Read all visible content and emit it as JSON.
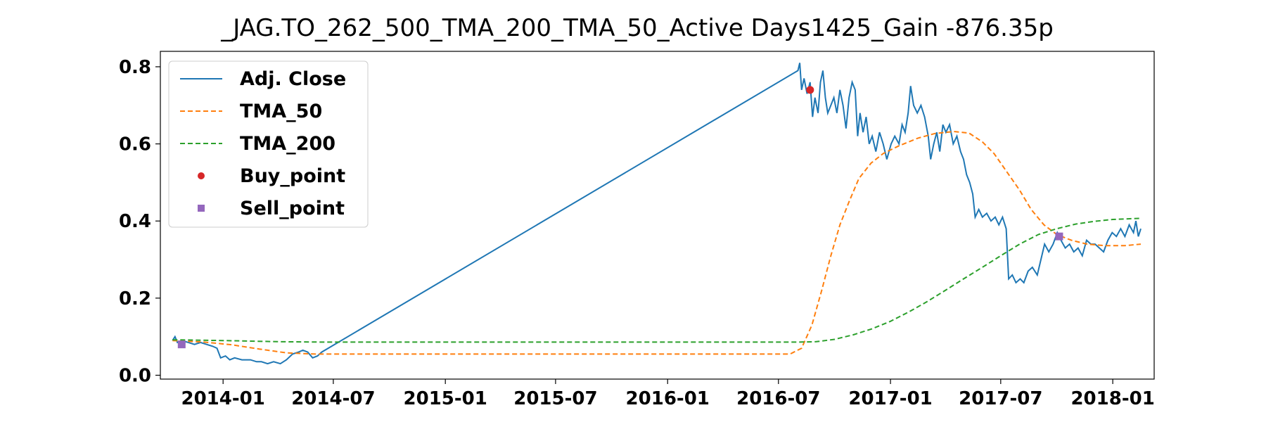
{
  "chart_data": {
    "type": "line",
    "title": "_JAG.TO_262_500_TMA_200_TMA_50_Active Days1425_Gain -876.35p",
    "xlabel": "",
    "ylabel": "",
    "xlim": [
      "2013-09-20",
      "2018-03-10"
    ],
    "ylim": [
      -0.01,
      0.84
    ],
    "x_ticks": [
      "2014-01",
      "2014-07",
      "2015-01",
      "2015-07",
      "2016-01",
      "2016-07",
      "2017-01",
      "2017-07",
      "2018-01"
    ],
    "y_ticks": [
      "0.0",
      "0.2",
      "0.4",
      "0.6",
      "0.8"
    ],
    "y_tick_values": [
      0.0,
      0.2,
      0.4,
      0.6,
      0.8
    ],
    "grid": false,
    "legend_position": "upper-left",
    "series": [
      {
        "name": "Adj. Close",
        "style": "solid",
        "color": "#1f77b4",
        "points": [
          [
            "2013-10-10",
            0.09
          ],
          [
            "2013-10-14",
            0.1
          ],
          [
            "2013-10-18",
            0.085
          ],
          [
            "2013-10-25",
            0.09
          ],
          [
            "2013-11-05",
            0.085
          ],
          [
            "2013-11-15",
            0.08
          ],
          [
            "2013-11-25",
            0.085
          ],
          [
            "2013-12-05",
            0.08
          ],
          [
            "2013-12-15",
            0.075
          ],
          [
            "2013-12-22",
            0.07
          ],
          [
            "2013-12-28",
            0.045
          ],
          [
            "2014-01-05",
            0.05
          ],
          [
            "2014-01-12",
            0.04
          ],
          [
            "2014-01-20",
            0.045
          ],
          [
            "2014-02-01",
            0.04
          ],
          [
            "2014-02-15",
            0.04
          ],
          [
            "2014-02-25",
            0.035
          ],
          [
            "2014-03-05",
            0.035
          ],
          [
            "2014-03-15",
            0.03
          ],
          [
            "2014-03-25",
            0.035
          ],
          [
            "2014-04-05",
            0.03
          ],
          [
            "2014-04-15",
            0.04
          ],
          [
            "2014-04-25",
            0.055
          ],
          [
            "2014-05-05",
            0.06
          ],
          [
            "2014-05-12",
            0.065
          ],
          [
            "2014-05-20",
            0.06
          ],
          [
            "2014-05-28",
            0.045
          ],
          [
            "2014-06-05",
            0.05
          ],
          [
            "2014-06-12",
            0.06
          ],
          [
            "2016-08-02",
            0.79
          ],
          [
            "2016-08-05",
            0.81
          ],
          [
            "2016-08-08",
            0.74
          ],
          [
            "2016-08-12",
            0.77
          ],
          [
            "2016-08-17",
            0.73
          ],
          [
            "2016-08-22",
            0.76
          ],
          [
            "2016-08-26",
            0.67
          ],
          [
            "2016-08-30",
            0.72
          ],
          [
            "2016-09-04",
            0.68
          ],
          [
            "2016-09-08",
            0.76
          ],
          [
            "2016-09-12",
            0.79
          ],
          [
            "2016-09-16",
            0.72
          ],
          [
            "2016-09-20",
            0.68
          ],
          [
            "2016-09-25",
            0.7
          ],
          [
            "2016-09-30",
            0.72
          ],
          [
            "2016-10-05",
            0.68
          ],
          [
            "2016-10-10",
            0.74
          ],
          [
            "2016-10-15",
            0.7
          ],
          [
            "2016-10-20",
            0.64
          ],
          [
            "2016-10-25",
            0.72
          ],
          [
            "2016-10-30",
            0.76
          ],
          [
            "2016-11-04",
            0.74
          ],
          [
            "2016-11-08",
            0.62
          ],
          [
            "2016-11-12",
            0.68
          ],
          [
            "2016-11-17",
            0.63
          ],
          [
            "2016-11-22",
            0.67
          ],
          [
            "2016-11-27",
            0.6
          ],
          [
            "2016-12-02",
            0.62
          ],
          [
            "2016-12-08",
            0.58
          ],
          [
            "2016-12-14",
            0.63
          ],
          [
            "2016-12-20",
            0.6
          ],
          [
            "2016-12-26",
            0.56
          ],
          [
            "2017-01-02",
            0.6
          ],
          [
            "2017-01-08",
            0.62
          ],
          [
            "2017-01-15",
            0.6
          ],
          [
            "2017-01-20",
            0.65
          ],
          [
            "2017-01-25",
            0.63
          ],
          [
            "2017-01-30",
            0.68
          ],
          [
            "2017-02-03",
            0.75
          ],
          [
            "2017-02-08",
            0.7
          ],
          [
            "2017-02-14",
            0.68
          ],
          [
            "2017-02-20",
            0.7
          ],
          [
            "2017-02-26",
            0.67
          ],
          [
            "2017-03-04",
            0.62
          ],
          [
            "2017-03-08",
            0.56
          ],
          [
            "2017-03-13",
            0.6
          ],
          [
            "2017-03-18",
            0.63
          ],
          [
            "2017-03-23",
            0.58
          ],
          [
            "2017-03-28",
            0.65
          ],
          [
            "2017-04-02",
            0.63
          ],
          [
            "2017-04-08",
            0.65
          ],
          [
            "2017-04-14",
            0.6
          ],
          [
            "2017-04-20",
            0.62
          ],
          [
            "2017-04-26",
            0.58
          ],
          [
            "2017-05-01",
            0.56
          ],
          [
            "2017-05-06",
            0.52
          ],
          [
            "2017-05-11",
            0.5
          ],
          [
            "2017-05-16",
            0.47
          ],
          [
            "2017-05-20",
            0.41
          ],
          [
            "2017-05-26",
            0.43
          ],
          [
            "2017-06-01",
            0.41
          ],
          [
            "2017-06-08",
            0.42
          ],
          [
            "2017-06-15",
            0.4
          ],
          [
            "2017-06-22",
            0.41
          ],
          [
            "2017-06-28",
            0.39
          ],
          [
            "2017-07-04",
            0.41
          ],
          [
            "2017-07-10",
            0.38
          ],
          [
            "2017-07-14",
            0.25
          ],
          [
            "2017-07-20",
            0.26
          ],
          [
            "2017-07-26",
            0.24
          ],
          [
            "2017-08-02",
            0.25
          ],
          [
            "2017-08-08",
            0.24
          ],
          [
            "2017-08-15",
            0.27
          ],
          [
            "2017-08-22",
            0.28
          ],
          [
            "2017-08-30",
            0.26
          ],
          [
            "2017-09-05",
            0.3
          ],
          [
            "2017-09-11",
            0.34
          ],
          [
            "2017-09-18",
            0.32
          ],
          [
            "2017-09-25",
            0.34
          ],
          [
            "2017-10-02",
            0.37
          ],
          [
            "2017-10-08",
            0.35
          ],
          [
            "2017-10-15",
            0.33
          ],
          [
            "2017-10-22",
            0.34
          ],
          [
            "2017-10-29",
            0.32
          ],
          [
            "2017-11-05",
            0.33
          ],
          [
            "2017-11-12",
            0.31
          ],
          [
            "2017-11-19",
            0.35
          ],
          [
            "2017-11-26",
            0.34
          ],
          [
            "2017-12-03",
            0.34
          ],
          [
            "2017-12-10",
            0.33
          ],
          [
            "2017-12-17",
            0.32
          ],
          [
            "2017-12-24",
            0.35
          ],
          [
            "2017-12-31",
            0.37
          ],
          [
            "2018-01-07",
            0.36
          ],
          [
            "2018-01-14",
            0.38
          ],
          [
            "2018-01-21",
            0.36
          ],
          [
            "2018-01-28",
            0.39
          ],
          [
            "2018-02-04",
            0.37
          ],
          [
            "2018-02-08",
            0.4
          ],
          [
            "2018-02-12",
            0.36
          ],
          [
            "2018-02-16",
            0.38
          ]
        ]
      },
      {
        "name": "TMA_50",
        "style": "dashed",
        "color": "#ff7f0e",
        "points": [
          [
            "2013-10-10",
            0.09
          ],
          [
            "2013-12-01",
            0.086
          ],
          [
            "2014-01-15",
            0.079
          ],
          [
            "2014-03-01",
            0.068
          ],
          [
            "2014-04-15",
            0.058
          ],
          [
            "2014-06-01",
            0.055
          ],
          [
            "2016-07-20",
            0.055
          ],
          [
            "2016-08-08",
            0.07
          ],
          [
            "2016-08-25",
            0.13
          ],
          [
            "2016-09-10",
            0.22
          ],
          [
            "2016-09-25",
            0.31
          ],
          [
            "2016-10-10",
            0.39
          ],
          [
            "2016-10-25",
            0.45
          ],
          [
            "2016-11-10",
            0.51
          ],
          [
            "2016-11-30",
            0.55
          ],
          [
            "2016-12-20",
            0.575
          ],
          [
            "2017-01-15",
            0.595
          ],
          [
            "2017-02-15",
            0.615
          ],
          [
            "2017-03-15",
            0.627
          ],
          [
            "2017-04-15",
            0.632
          ],
          [
            "2017-05-10",
            0.628
          ],
          [
            "2017-06-01",
            0.605
          ],
          [
            "2017-06-20",
            0.575
          ],
          [
            "2017-07-10",
            0.53
          ],
          [
            "2017-08-01",
            0.48
          ],
          [
            "2017-08-20",
            0.43
          ],
          [
            "2017-09-10",
            0.39
          ],
          [
            "2017-10-01",
            0.365
          ],
          [
            "2017-10-25",
            0.35
          ],
          [
            "2017-11-20",
            0.34
          ],
          [
            "2017-12-20",
            0.336
          ],
          [
            "2018-01-20",
            0.336
          ],
          [
            "2018-02-16",
            0.34
          ]
        ]
      },
      {
        "name": "TMA_200",
        "style": "dashed",
        "color": "#2ca02c",
        "points": [
          [
            "2013-10-10",
            0.092
          ],
          [
            "2014-01-01",
            0.09
          ],
          [
            "2014-04-01",
            0.087
          ],
          [
            "2014-06-15",
            0.086
          ],
          [
            "2016-08-01",
            0.086
          ],
          [
            "2016-09-01",
            0.087
          ],
          [
            "2016-10-01",
            0.093
          ],
          [
            "2016-11-01",
            0.105
          ],
          [
            "2016-12-01",
            0.12
          ],
          [
            "2017-01-01",
            0.14
          ],
          [
            "2017-02-01",
            0.165
          ],
          [
            "2017-03-01",
            0.19
          ],
          [
            "2017-04-01",
            0.22
          ],
          [
            "2017-05-01",
            0.25
          ],
          [
            "2017-06-01",
            0.28
          ],
          [
            "2017-07-01",
            0.31
          ],
          [
            "2017-08-01",
            0.34
          ],
          [
            "2017-09-01",
            0.365
          ],
          [
            "2017-10-01",
            0.38
          ],
          [
            "2017-11-01",
            0.392
          ],
          [
            "2017-12-01",
            0.399
          ],
          [
            "2018-01-01",
            0.404
          ],
          [
            "2018-02-16",
            0.407
          ]
        ]
      }
    ],
    "markers": [
      {
        "name": "Buy_point",
        "shape": "circle",
        "color": "#d62728",
        "points": [
          [
            "2016-08-22",
            0.74
          ]
        ]
      },
      {
        "name": "Sell_point",
        "shape": "square",
        "color": "#9467bd",
        "points": [
          [
            "2013-10-25",
            0.08
          ],
          [
            "2017-10-05",
            0.36
          ]
        ]
      }
    ]
  }
}
